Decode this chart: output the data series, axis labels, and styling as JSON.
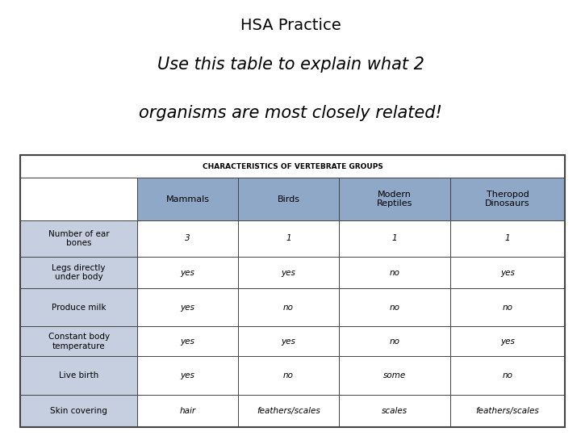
{
  "title_line1": "HSA Practice",
  "title_line2": "Use this table to explain what 2",
  "title_line3": "organisms are most closely related!",
  "table_title": "CHARACTERISTICS OF VERTEBRATE GROUPS",
  "col_headers": [
    "Mammals",
    "Birds",
    "Modern\nReptiles",
    "Theropod\nDinosaurs"
  ],
  "row_headers": [
    "Number of ear\nbones",
    "Legs directly\nunder body",
    "Produce milk",
    "Constant body\ntemperature",
    "Live birth",
    "Skin covering"
  ],
  "data": [
    [
      "3",
      "1",
      "1",
      "1"
    ],
    [
      "yes",
      "yes",
      "no",
      "yes"
    ],
    [
      "yes",
      "no",
      "no",
      "no"
    ],
    [
      "yes",
      "yes",
      "no",
      "yes"
    ],
    [
      "yes",
      "no",
      "some",
      "no"
    ],
    [
      "hair",
      "feathers/scales",
      "scales",
      "feathers/scales"
    ]
  ],
  "header_bg": "#8fa8c8",
  "row_header_bg": "#c5cfe0",
  "cell_bg": "#ffffff",
  "title_row_bg": "#ffffff",
  "border_color": "#444444",
  "text_color": "#000000",
  "bg_color": "#ffffff",
  "title1_fontsize": 14,
  "title23_fontsize": 15,
  "table_title_fontsize": 6.5,
  "col_header_fontsize": 8,
  "row_header_fontsize": 7.5,
  "cell_fontsize": 7.5
}
